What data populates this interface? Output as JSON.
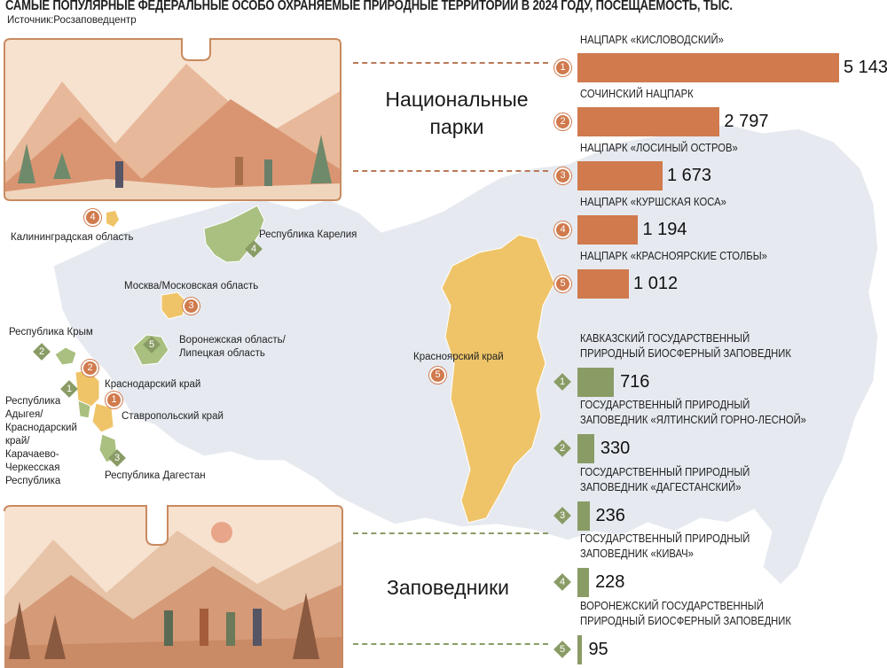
{
  "title": "САМЫЕ ПОПУЛЯРНЫЕ ФЕДЕРАЛЬНЫЕ ОСОБО ОХРАНЯЕМЫЕ ПРИРОДНЫЕ ТЕРРИТОРИИ В 2024 ГОДУ, ПОСЕЩАЕМОСТЬ, ТЫС.",
  "source": "Источник:Росзаповедцентр",
  "sections": {
    "parks": "Национальные парки",
    "reserves": "Заповедники"
  },
  "colors": {
    "parks": "#d07a4d",
    "reserves": "#8a9c66",
    "map_base": "#e5e9ef",
    "map_highlight_yellow": "#efc469",
    "map_highlight_green": "#a9c080"
  },
  "chart_data": [
    {
      "type": "bar",
      "orientation": "horizontal",
      "group": "Национальные парки",
      "categories": [
        "НАЦПАРК «КИСЛОВОДСКИЙ»",
        "СОЧИНСКИЙ НАЦПАРК",
        "НАЦПАРК «ЛОСИНЫЙ ОСТРОВ»",
        "НАЦПАРК «КУРШСКАЯ КОСА»",
        "НАЦПАРК «КРАСНОЯРСКИЕ СТОЛБЫ»"
      ],
      "ranks": [
        "1",
        "2",
        "3",
        "4",
        "5"
      ],
      "values": [
        5143,
        2797,
        1673,
        1194,
        1012
      ],
      "value_labels": [
        "5 143",
        "2 797",
        "1 673",
        "1 194",
        "1 012"
      ],
      "xlim": [
        0,
        5143
      ]
    },
    {
      "type": "bar",
      "orientation": "horizontal",
      "group": "Заповедники",
      "categories": [
        "КАВКАЗСКИЙ ГОСУДАРСТВЕННЫЙ ПРИРОДНЫЙ БИОСФЕРНЫЙ ЗАПОВЕДНИК",
        "ГОСУДАРСТВЕННЫЙ ПРИРОДНЫЙ ЗАПОВЕДНИК «ЯЛТИНСКИЙ ГОРНО-ЛЕСНОЙ»",
        "ГОСУДАРСТВЕННЫЙ ПРИРОДНЫЙ ЗАПОВЕДНИК «ДАГЕСТАНСКИЙ»",
        "ГОСУДАРСТВЕННЫЙ ПРИРОДНЫЙ ЗАПОВЕДНИК «КИВАЧ»",
        "ВОРОНЕЖСКИЙ ГОСУДАРСТВЕННЫЙ ПРИРОДНЫЙ БИОСФЕРНЫЙ ЗАПОВЕДНИК"
      ],
      "category_lines": [
        [
          "КАВКАЗСКИЙ ГОСУДАРСТВЕННЫЙ",
          "ПРИРОДНЫЙ БИОСФЕРНЫЙ ЗАПОВЕДНИК"
        ],
        [
          "ГОСУДАРСТВЕННЫЙ ПРИРОДНЫЙ",
          "ЗАПОВЕДНИК «ЯЛТИНСКИЙ ГОРНО-ЛЕСНОЙ»"
        ],
        [
          "ГОСУДАРСТВЕННЫЙ ПРИРОДНЫЙ",
          "ЗАПОВЕДНИК «ДАГЕСТАНСКИЙ»"
        ],
        [
          "ГОСУДАРСТВЕННЫЙ ПРИРОДНЫЙ",
          "ЗАПОВЕДНИК «КИВАЧ»"
        ],
        [
          "ВОРОНЕЖСКИЙ ГОСУДАРСТВЕННЫЙ",
          "ПРИРОДНЫЙ БИОСФЕРНЫЙ ЗАПОВЕДНИК"
        ]
      ],
      "ranks": [
        "1",
        "2",
        "3",
        "4",
        "5"
      ],
      "values": [
        716,
        330,
        236,
        228,
        95
      ],
      "value_labels": [
        "716",
        "330",
        "236",
        "228",
        "95"
      ],
      "xlim": [
        0,
        5143
      ]
    }
  ],
  "map": {
    "regions": [
      {
        "name": "Калининградская область",
        "rank": "4",
        "kind": "park"
      },
      {
        "name": "Республика Карелия",
        "rank": "4",
        "kind": "reserve"
      },
      {
        "name": "Москва/Московская область",
        "rank": "3",
        "kind": "park"
      },
      {
        "name": "Республика Крым",
        "rank": "2",
        "kind": "reserve"
      },
      {
        "name": "Воронежская область/ Липецкая область",
        "lines": [
          "Воронежская область/",
          "Липецкая область"
        ],
        "rank": "5",
        "kind": "reserve"
      },
      {
        "name": "Краснодарский край",
        "rank": "2",
        "kind": "park"
      },
      {
        "name": "Ставропольский край",
        "rank": "1",
        "kind": "park"
      },
      {
        "name": "Республика Адыгея/ Краснодарский край/ Карачаево- Черкесская Республика",
        "lines": [
          "Республика",
          "Адыгея/",
          "Краснодарский",
          "край/",
          "Карачаево-",
          "Черкесская",
          "Республика"
        ],
        "rank": "1",
        "kind": "reserve"
      },
      {
        "name": "Республика Дагестан",
        "rank": "3",
        "kind": "reserve"
      },
      {
        "name": "Красноярский край",
        "rank": "5",
        "kind": "park"
      }
    ]
  }
}
